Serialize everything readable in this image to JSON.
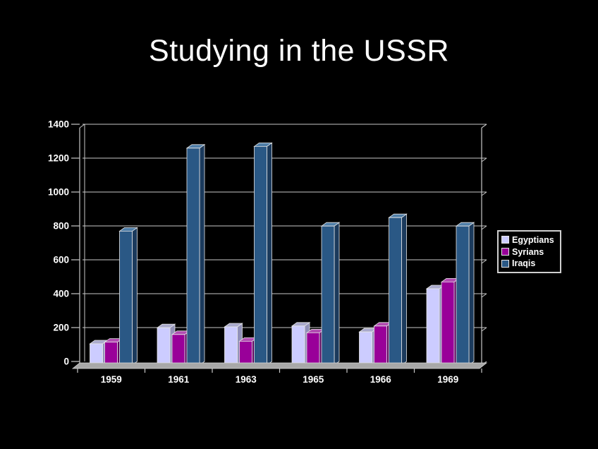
{
  "slide": {
    "title": "Studying in the USSR",
    "background_color": "#000000",
    "text_color": "#FFFFFF"
  },
  "chart_data": {
    "type": "bar",
    "style": "3d-clustered-column",
    "title": "Studying in the USSR",
    "xlabel": "",
    "ylabel": "",
    "categories": [
      "1959",
      "1961",
      "1963",
      "1965",
      "1966",
      "1969"
    ],
    "series": [
      {
        "name": "Egyptians",
        "color": "#CCCCFF",
        "top_color": "#A9A9CC",
        "side_color": "#9191B8",
        "values": [
          125,
          220,
          225,
          230,
          195,
          450
        ]
      },
      {
        "name": "Syrians",
        "color": "#990099",
        "top_color": "#B24CB2",
        "side_color": "#5C005C",
        "values": [
          135,
          180,
          140,
          190,
          230,
          490
        ]
      },
      {
        "name": "Iraqis",
        "color": "#2A5885",
        "top_color": "#4F7EA8",
        "side_color": "#1B3A5C",
        "values": [
          790,
          1280,
          1290,
          820,
          870,
          820
        ]
      }
    ],
    "ylim": [
      0,
      1400
    ],
    "ytick_step": 200,
    "yticks": [
      "0",
      "200",
      "400",
      "600",
      "800",
      "1000",
      "1200",
      "1400"
    ],
    "grid": true,
    "legend_position": "right",
    "axis_color": "#C8C8C8",
    "gridline_color": "#C8C8C8",
    "floor_color": "#A8A8A8",
    "tick_label_color": "#FFFFFF",
    "bar_outline_color": "#E6E6E6"
  }
}
